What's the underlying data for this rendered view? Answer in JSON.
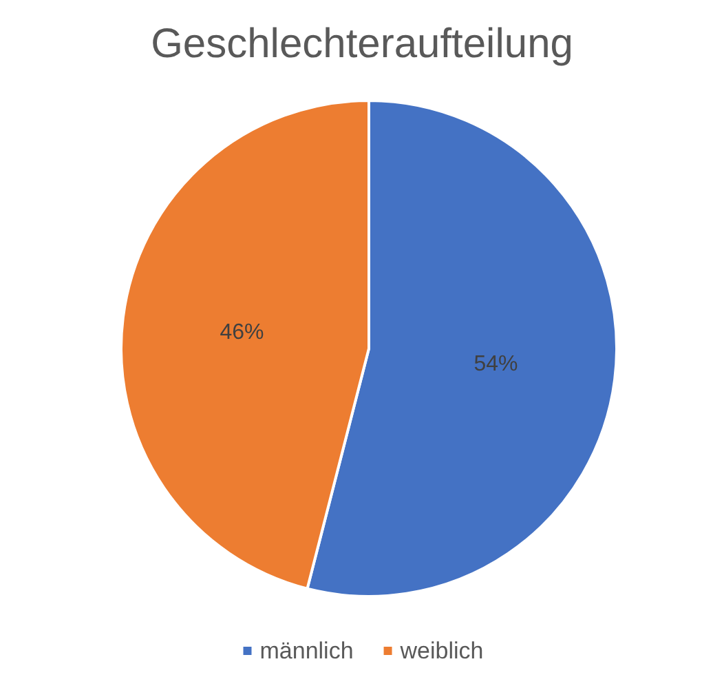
{
  "chart_data": {
    "type": "pie",
    "title": "Geschlechteraufteilung",
    "categories": [
      "männlich",
      "weiblich"
    ],
    "values": [
      54,
      46
    ],
    "colors": [
      "#4472c4",
      "#ed7d31"
    ],
    "value_labels": [
      "54%",
      "46%"
    ],
    "legend": "bottom"
  }
}
